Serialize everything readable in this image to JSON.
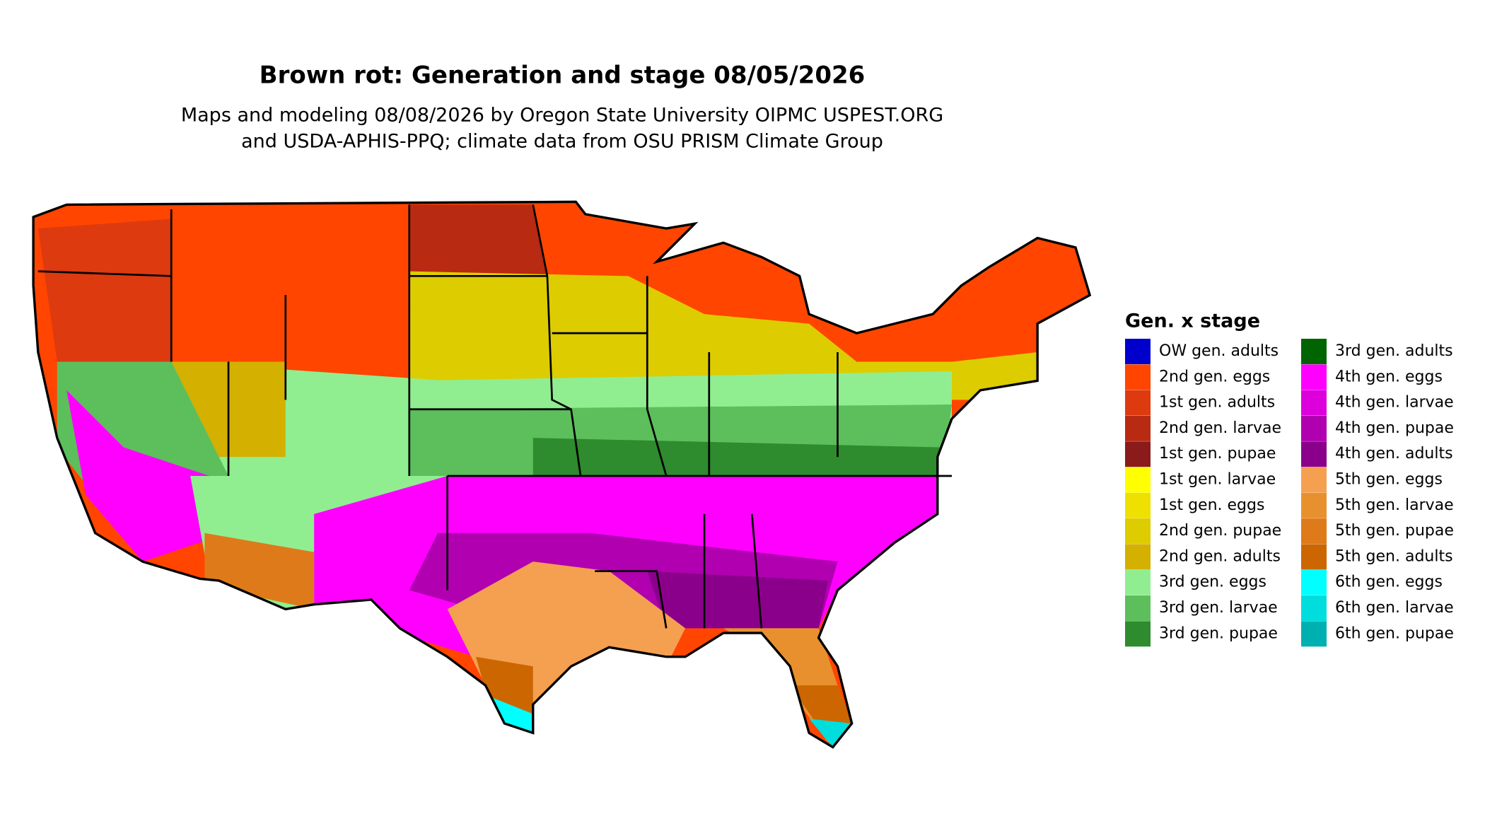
{
  "title": "Brown rot: Generation and stage 08/05/2026",
  "subtitle": [
    "Maps and modeling 08/08/2026 by Oregon State University OIPMC USPEST.ORG",
    "and USDA-APHIS-PPQ; climate data from OSU PRISM Climate Group"
  ],
  "legend": {
    "title": "Gen. x stage",
    "items": [
      {
        "label": "OW gen. adults",
        "color": "#0000cc"
      },
      {
        "label": "2nd gen. eggs",
        "color": "#ff4500"
      },
      {
        "label": "1st gen. adults",
        "color": "#dd3a10"
      },
      {
        "label": "2nd gen. larvae",
        "color": "#b82a12"
      },
      {
        "label": "1st gen. pupae",
        "color": "#8b1a1a"
      },
      {
        "label": "1st gen. larvae",
        "color": "#ffff00"
      },
      {
        "label": "1st gen. eggs",
        "color": "#eee000"
      },
      {
        "label": "2nd gen. pupae",
        "color": "#ddcc00"
      },
      {
        "label": "2nd gen. adults",
        "color": "#d4b000"
      },
      {
        "label": "3rd gen. eggs",
        "color": "#90ee90"
      },
      {
        "label": "3rd gen. larvae",
        "color": "#5cbf5c"
      },
      {
        "label": "3rd gen. pupae",
        "color": "#2e8b2e"
      },
      {
        "label": "3rd gen. adults",
        "color": "#006400"
      },
      {
        "label": "4th gen. eggs",
        "color": "#ff00ff"
      },
      {
        "label": "4th gen. larvae",
        "color": "#dd00dd"
      },
      {
        "label": "4th gen. pupae",
        "color": "#b000b0"
      },
      {
        "label": "4th gen. adults",
        "color": "#8b008b"
      },
      {
        "label": "5th gen. eggs",
        "color": "#f4a050"
      },
      {
        "label": "5th gen. larvae",
        "color": "#e8902e"
      },
      {
        "label": "5th gen. pupae",
        "color": "#de7a1a"
      },
      {
        "label": "5th gen. adults",
        "color": "#cc6600"
      },
      {
        "label": "6th gen. eggs",
        "color": "#00ffff"
      },
      {
        "label": "6th gen. larvae",
        "color": "#00dddd"
      },
      {
        "label": "6th gen. pupae",
        "color": "#00b0b0"
      }
    ]
  }
}
